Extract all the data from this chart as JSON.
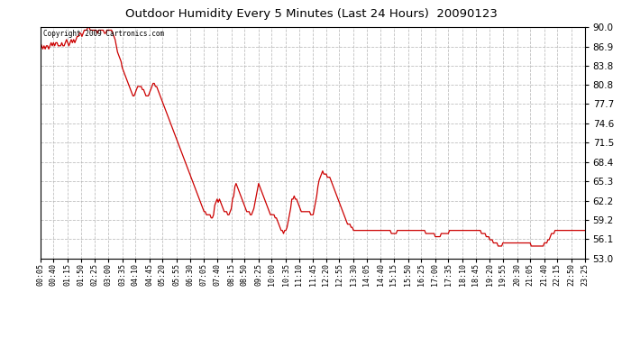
{
  "title": "Outdoor Humidity Every 5 Minutes (Last 24 Hours)  20090123",
  "copyright_text": "Copyright 2009 Cartronics.com",
  "line_color": "#cc0000",
  "bg_color": "#ffffff",
  "plot_bg_color": "#ffffff",
  "grid_color": "#b0b0b0",
  "yticks": [
    53.0,
    56.1,
    59.2,
    62.2,
    65.3,
    68.4,
    71.5,
    74.6,
    77.7,
    80.8,
    83.8,
    86.9,
    90.0
  ],
  "ylim": [
    53.0,
    90.0
  ],
  "x_labels": [
    "00:05",
    "00:40",
    "01:15",
    "01:50",
    "02:25",
    "03:00",
    "03:35",
    "04:10",
    "04:45",
    "05:20",
    "05:55",
    "06:30",
    "07:05",
    "07:40",
    "08:15",
    "08:50",
    "09:25",
    "10:00",
    "10:35",
    "11:10",
    "11:45",
    "12:20",
    "12:55",
    "13:30",
    "14:05",
    "14:40",
    "15:15",
    "15:50",
    "16:25",
    "17:00",
    "17:35",
    "18:10",
    "18:45",
    "19:20",
    "19:55",
    "20:30",
    "21:05",
    "21:40",
    "22:15",
    "22:50",
    "23:25"
  ],
  "humidity_values": [
    87.5,
    87.0,
    86.5,
    87.0,
    86.5,
    87.0,
    87.0,
    86.5,
    87.0,
    87.5,
    87.0,
    87.5,
    87.0,
    87.5,
    87.5,
    87.0,
    87.0,
    87.0,
    87.5,
    87.0,
    87.0,
    87.5,
    88.0,
    87.5,
    87.0,
    87.5,
    88.0,
    87.5,
    88.0,
    87.5,
    88.0,
    88.5,
    88.5,
    89.0,
    89.0,
    88.5,
    89.0,
    89.5,
    89.5,
    89.5,
    90.0,
    90.0,
    89.5,
    89.5,
    89.5,
    89.5,
    89.5,
    89.5,
    89.0,
    89.5,
    89.5,
    89.5,
    89.5,
    89.5,
    89.0,
    89.0,
    89.5,
    89.5,
    89.5,
    89.5,
    89.5,
    89.0,
    88.5,
    88.0,
    87.0,
    86.0,
    85.5,
    85.0,
    84.5,
    83.5,
    83.0,
    82.5,
    82.0,
    81.5,
    81.0,
    80.5,
    80.0,
    79.5,
    79.0,
    79.0,
    79.5,
    80.0,
    80.5,
    80.5,
    80.5,
    80.5,
    80.0,
    80.0,
    79.5,
    79.0,
    79.0,
    79.0,
    79.5,
    80.0,
    80.5,
    81.0,
    81.0,
    80.5,
    80.5,
    80.0,
    79.5,
    79.0,
    78.5,
    78.0,
    77.5,
    77.0,
    76.5,
    76.0,
    75.5,
    75.0,
    74.5,
    74.0,
    73.5,
    73.0,
    72.5,
    72.0,
    71.5,
    71.0,
    70.5,
    70.0,
    69.5,
    69.0,
    68.5,
    68.0,
    67.5,
    67.0,
    66.5,
    66.0,
    65.5,
    65.0,
    64.5,
    64.0,
    63.5,
    63.0,
    62.5,
    62.0,
    61.5,
    61.0,
    60.5,
    60.5,
    60.0,
    60.0,
    60.0,
    60.0,
    59.5,
    59.5,
    60.0,
    61.5,
    62.0,
    62.5,
    62.0,
    62.5,
    62.0,
    61.5,
    61.0,
    60.5,
    60.5,
    60.5,
    60.0,
    60.0,
    60.5,
    61.0,
    62.5,
    63.0,
    64.5,
    65.0,
    64.5,
    64.0,
    63.5,
    63.0,
    62.5,
    62.0,
    61.5,
    61.0,
    60.5,
    60.5,
    60.5,
    60.0,
    60.0,
    60.5,
    61.0,
    62.0,
    63.0,
    64.0,
    65.0,
    64.5,
    64.0,
    63.5,
    63.0,
    62.5,
    62.0,
    61.5,
    61.0,
    60.5,
    60.0,
    60.0,
    60.0,
    60.0,
    59.5,
    59.5,
    59.0,
    58.5,
    58.0,
    57.5,
    57.5,
    57.0,
    57.5,
    57.5,
    58.0,
    59.0,
    60.0,
    61.0,
    62.5,
    62.5,
    63.0,
    62.5,
    62.5,
    62.0,
    61.5,
    61.0,
    60.5,
    60.5,
    60.5,
    60.5,
    60.5,
    60.5,
    60.5,
    60.5,
    60.0,
    60.0,
    60.0,
    61.0,
    62.0,
    63.0,
    64.5,
    65.5,
    66.0,
    66.5,
    67.0,
    66.5,
    66.5,
    66.5,
    66.0,
    66.0,
    66.0,
    65.5,
    65.0,
    64.5,
    64.0,
    63.5,
    63.0,
    62.5,
    62.0,
    61.5,
    61.0,
    60.5,
    60.0,
    59.5,
    59.0,
    58.5,
    58.5,
    58.5,
    58.0,
    58.0,
    57.5,
    57.5,
    57.5,
    57.5,
    57.5,
    57.5,
    57.5,
    57.5,
    57.5,
    57.5,
    57.5,
    57.5,
    57.5,
    57.5,
    57.5,
    57.5,
    57.5,
    57.5,
    57.5,
    57.5,
    57.5,
    57.5,
    57.5,
    57.5,
    57.5,
    57.5,
    57.5,
    57.5,
    57.5,
    57.5,
    57.5,
    57.5,
    57.0,
    57.0,
    57.0,
    57.0,
    57.0,
    57.5,
    57.5,
    57.5,
    57.5,
    57.5,
    57.5,
    57.5,
    57.5,
    57.5,
    57.5,
    57.5,
    57.5,
    57.5,
    57.5,
    57.5,
    57.5,
    57.5,
    57.5,
    57.5,
    57.5,
    57.5,
    57.5,
    57.5,
    57.5,
    57.0,
    57.0,
    57.0,
    57.0,
    57.0,
    57.0,
    57.0,
    57.0,
    56.5,
    56.5,
    56.5,
    56.5,
    56.5,
    57.0,
    57.0,
    57.0,
    57.0,
    57.0,
    57.0,
    57.0,
    57.5,
    57.5,
    57.5,
    57.5,
    57.5,
    57.5,
    57.5,
    57.5,
    57.5,
    57.5,
    57.5,
    57.5,
    57.5,
    57.5,
    57.5,
    57.5,
    57.5,
    57.5,
    57.5,
    57.5,
    57.5,
    57.5,
    57.5,
    57.5,
    57.5,
    57.5,
    57.5,
    57.0,
    57.0,
    57.0,
    57.0,
    56.5,
    56.5,
    56.5,
    56.0,
    56.0,
    56.0,
    55.5,
    55.5,
    55.5,
    55.5,
    55.0,
    55.0,
    55.0,
    55.0,
    55.5,
    55.5,
    55.5,
    55.5,
    55.5,
    55.5,
    55.5,
    55.5,
    55.5,
    55.5,
    55.5,
    55.5,
    55.5,
    55.5,
    55.5,
    55.5,
    55.5,
    55.5,
    55.5,
    55.5,
    55.5,
    55.5,
    55.5,
    55.5,
    55.0,
    55.0,
    55.0,
    55.0,
    55.0,
    55.0,
    55.0,
    55.0,
    55.0,
    55.0,
    55.0,
    55.5,
    55.5,
    55.5,
    56.0,
    56.0,
    56.5,
    57.0,
    57.0,
    57.0,
    57.5,
    57.5,
    57.5,
    57.5,
    57.5,
    57.5,
    57.5,
    57.5,
    57.5,
    57.5,
    57.5,
    57.5,
    57.5,
    57.5,
    57.5,
    57.5,
    57.5,
    57.5,
    57.5,
    57.5,
    57.5,
    57.5,
    57.5,
    57.5,
    57.5,
    57.5
  ]
}
